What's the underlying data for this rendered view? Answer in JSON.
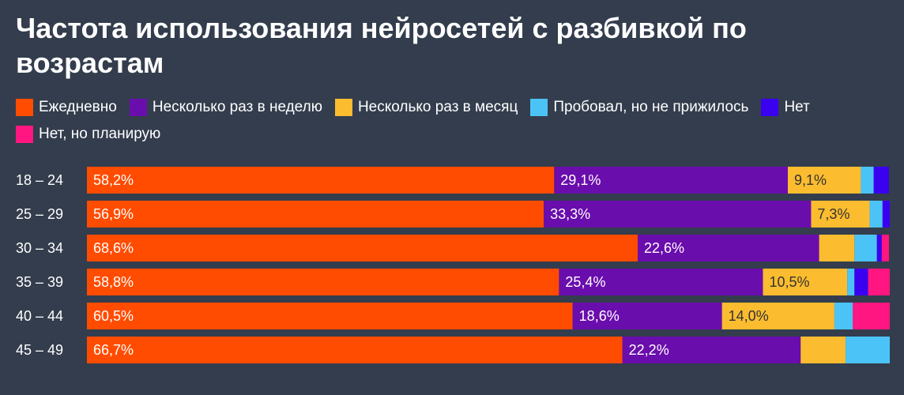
{
  "chart_data": {
    "type": "bar",
    "orientation": "horizontal",
    "stacked": true,
    "title": "Частота использования нейросетей с разбивкой по возрастам",
    "categories": [
      "18 – 24",
      "25 – 29",
      "30 – 34",
      "35 – 39",
      "40 – 44",
      "45 – 49"
    ],
    "series": [
      {
        "name": "Ежедневно",
        "color": "#ff4c00",
        "label_color": "#ffffff",
        "values": [
          58.2,
          56.9,
          68.6,
          58.8,
          60.5,
          66.7
        ],
        "labels": [
          "58,2%",
          "56,9%",
          "68,6%",
          "58,8%",
          "60,5%",
          "66,7%"
        ]
      },
      {
        "name": "Несколько раз в неделю",
        "color": "#6a0dad",
        "label_color": "#ffffff",
        "values": [
          29.1,
          33.3,
          22.6,
          25.4,
          18.6,
          22.2
        ],
        "labels": [
          "29,1%",
          "33,3%",
          "22,6%",
          "25,4%",
          "18,6%",
          "22,2%"
        ]
      },
      {
        "name": "Несколько раз в месяц",
        "color": "#fbbc2f",
        "label_color": "#333333",
        "values": [
          9.1,
          7.3,
          4.4,
          10.5,
          14.0,
          5.6
        ],
        "labels": [
          "9,1%",
          "7,3%",
          "",
          "10,5%",
          "14,0%",
          ""
        ]
      },
      {
        "name": "Пробовал, но не прижилось",
        "color": "#4cc3f7",
        "label_color": "#333333",
        "values": [
          1.6,
          1.6,
          2.8,
          0.9,
          2.3,
          5.5
        ],
        "labels": [
          "",
          "",
          "",
          "",
          "",
          ""
        ]
      },
      {
        "name": "Нет",
        "color": "#3a00f0",
        "label_color": "#ffffff",
        "values": [
          1.9,
          0.9,
          0.6,
          1.7,
          0.0,
          0.0
        ],
        "labels": [
          "",
          "",
          "",
          "",
          "",
          ""
        ]
      },
      {
        "name": "Нет, но планирую",
        "color": "#ff1680",
        "label_color": "#ffffff",
        "values": [
          0.0,
          0.0,
          0.9,
          2.7,
          4.6,
          0.0
        ],
        "labels": [
          "",
          "",
          "",
          "",
          "",
          ""
        ]
      }
    ],
    "xlim": [
      0,
      100
    ],
    "legend_position": "top-left",
    "grid": false
  }
}
